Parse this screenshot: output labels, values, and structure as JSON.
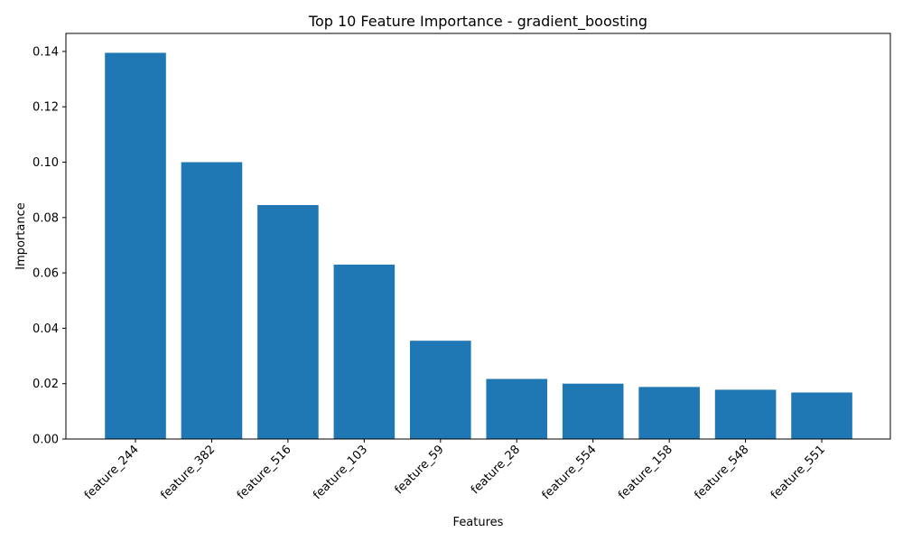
{
  "chart_data": {
    "type": "bar",
    "title": "Top 10 Feature Importance - gradient_boosting",
    "xlabel": "Features",
    "ylabel": "Importance",
    "categories": [
      "feature_244",
      "feature_382",
      "feature_516",
      "feature_103",
      "feature_59",
      "feature_28",
      "feature_554",
      "feature_158",
      "feature_548",
      "feature_551"
    ],
    "values": [
      0.1395,
      0.1,
      0.0845,
      0.063,
      0.0355,
      0.0217,
      0.02,
      0.0188,
      0.0178,
      0.0168
    ],
    "ylim": [
      0,
      0.1465
    ],
    "yticks": [
      "0.00",
      "0.02",
      "0.04",
      "0.06",
      "0.08",
      "0.10",
      "0.12",
      "0.14"
    ],
    "bar_color": "#1f77b4",
    "grid": false,
    "legend": false
  }
}
